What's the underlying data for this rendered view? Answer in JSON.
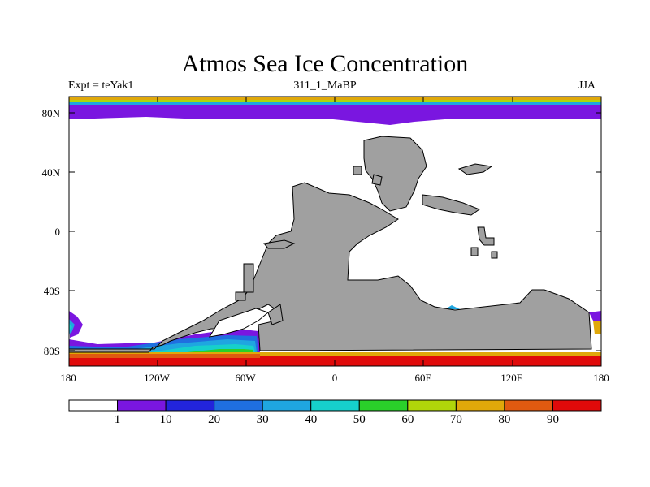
{
  "title": "Atmos Sea Ice Concentration",
  "left_label": "Expt = teYak1",
  "center_label": "311_1_MaBP",
  "right_label": "JJA",
  "lat_ticks": [
    "80N",
    "40N",
    "0",
    "40S",
    "80S"
  ],
  "lon_ticks": [
    "180",
    "120W",
    "60W",
    "0",
    "60E",
    "120E",
    "180"
  ],
  "colorbar": {
    "labels": [
      "1",
      "10",
      "20",
      "30",
      "40",
      "50",
      "60",
      "70",
      "80",
      "90"
    ],
    "colors": [
      "#ffffff",
      "#7a16e0",
      "#2224dc",
      "#1f6fe0",
      "#1fa6e0",
      "#16d0cc",
      "#2ad02a",
      "#b0d60a",
      "#e0a80a",
      "#e05a10",
      "#e00a0a"
    ]
  },
  "land_color": "#a0a0a0"
}
